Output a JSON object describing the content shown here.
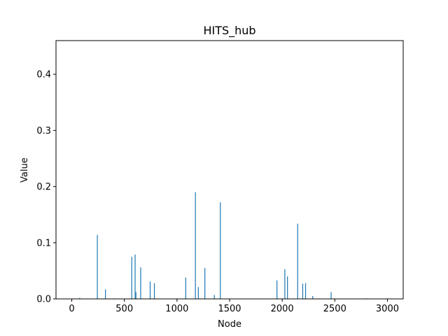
{
  "chart_data": {
    "type": "bar",
    "title": "HITS_hub",
    "xlabel": "Node",
    "ylabel": "Value",
    "xlim": [
      -150,
      3150
    ],
    "ylim": [
      0,
      0.46
    ],
    "xticks": [
      0,
      500,
      1000,
      1500,
      2000,
      2500,
      3000
    ],
    "yticks": [
      0.0,
      0.1,
      0.2,
      0.3,
      0.4
    ],
    "xtick_labels": [
      "0",
      "500",
      "1000",
      "1500",
      "2000",
      "2500",
      "3000"
    ],
    "ytick_labels": [
      "0.0",
      "0.1",
      "0.2",
      "0.3",
      "0.4"
    ],
    "bar_color": "#1f77b4",
    "grid": false,
    "points": [
      {
        "x": 75,
        "y": 0.002
      },
      {
        "x": 243,
        "y": 0.114
      },
      {
        "x": 320,
        "y": 0.017
      },
      {
        "x": 405,
        "y": 0.001
      },
      {
        "x": 570,
        "y": 0.075
      },
      {
        "x": 602,
        "y": 0.079
      },
      {
        "x": 610,
        "y": 0.012
      },
      {
        "x": 655,
        "y": 0.056
      },
      {
        "x": 745,
        "y": 0.031
      },
      {
        "x": 785,
        "y": 0.028
      },
      {
        "x": 1083,
        "y": 0.038
      },
      {
        "x": 1175,
        "y": 0.19
      },
      {
        "x": 1203,
        "y": 0.021
      },
      {
        "x": 1265,
        "y": 0.055
      },
      {
        "x": 1355,
        "y": 0.007
      },
      {
        "x": 1412,
        "y": 0.172
      },
      {
        "x": 1950,
        "y": 0.033
      },
      {
        "x": 2025,
        "y": 0.053
      },
      {
        "x": 2050,
        "y": 0.04
      },
      {
        "x": 2147,
        "y": 0.134
      },
      {
        "x": 2195,
        "y": 0.027
      },
      {
        "x": 2222,
        "y": 0.028
      },
      {
        "x": 2290,
        "y": 0.005
      },
      {
        "x": 2465,
        "y": 0.012
      },
      {
        "x": 2800,
        "y": 0.001
      }
    ]
  }
}
